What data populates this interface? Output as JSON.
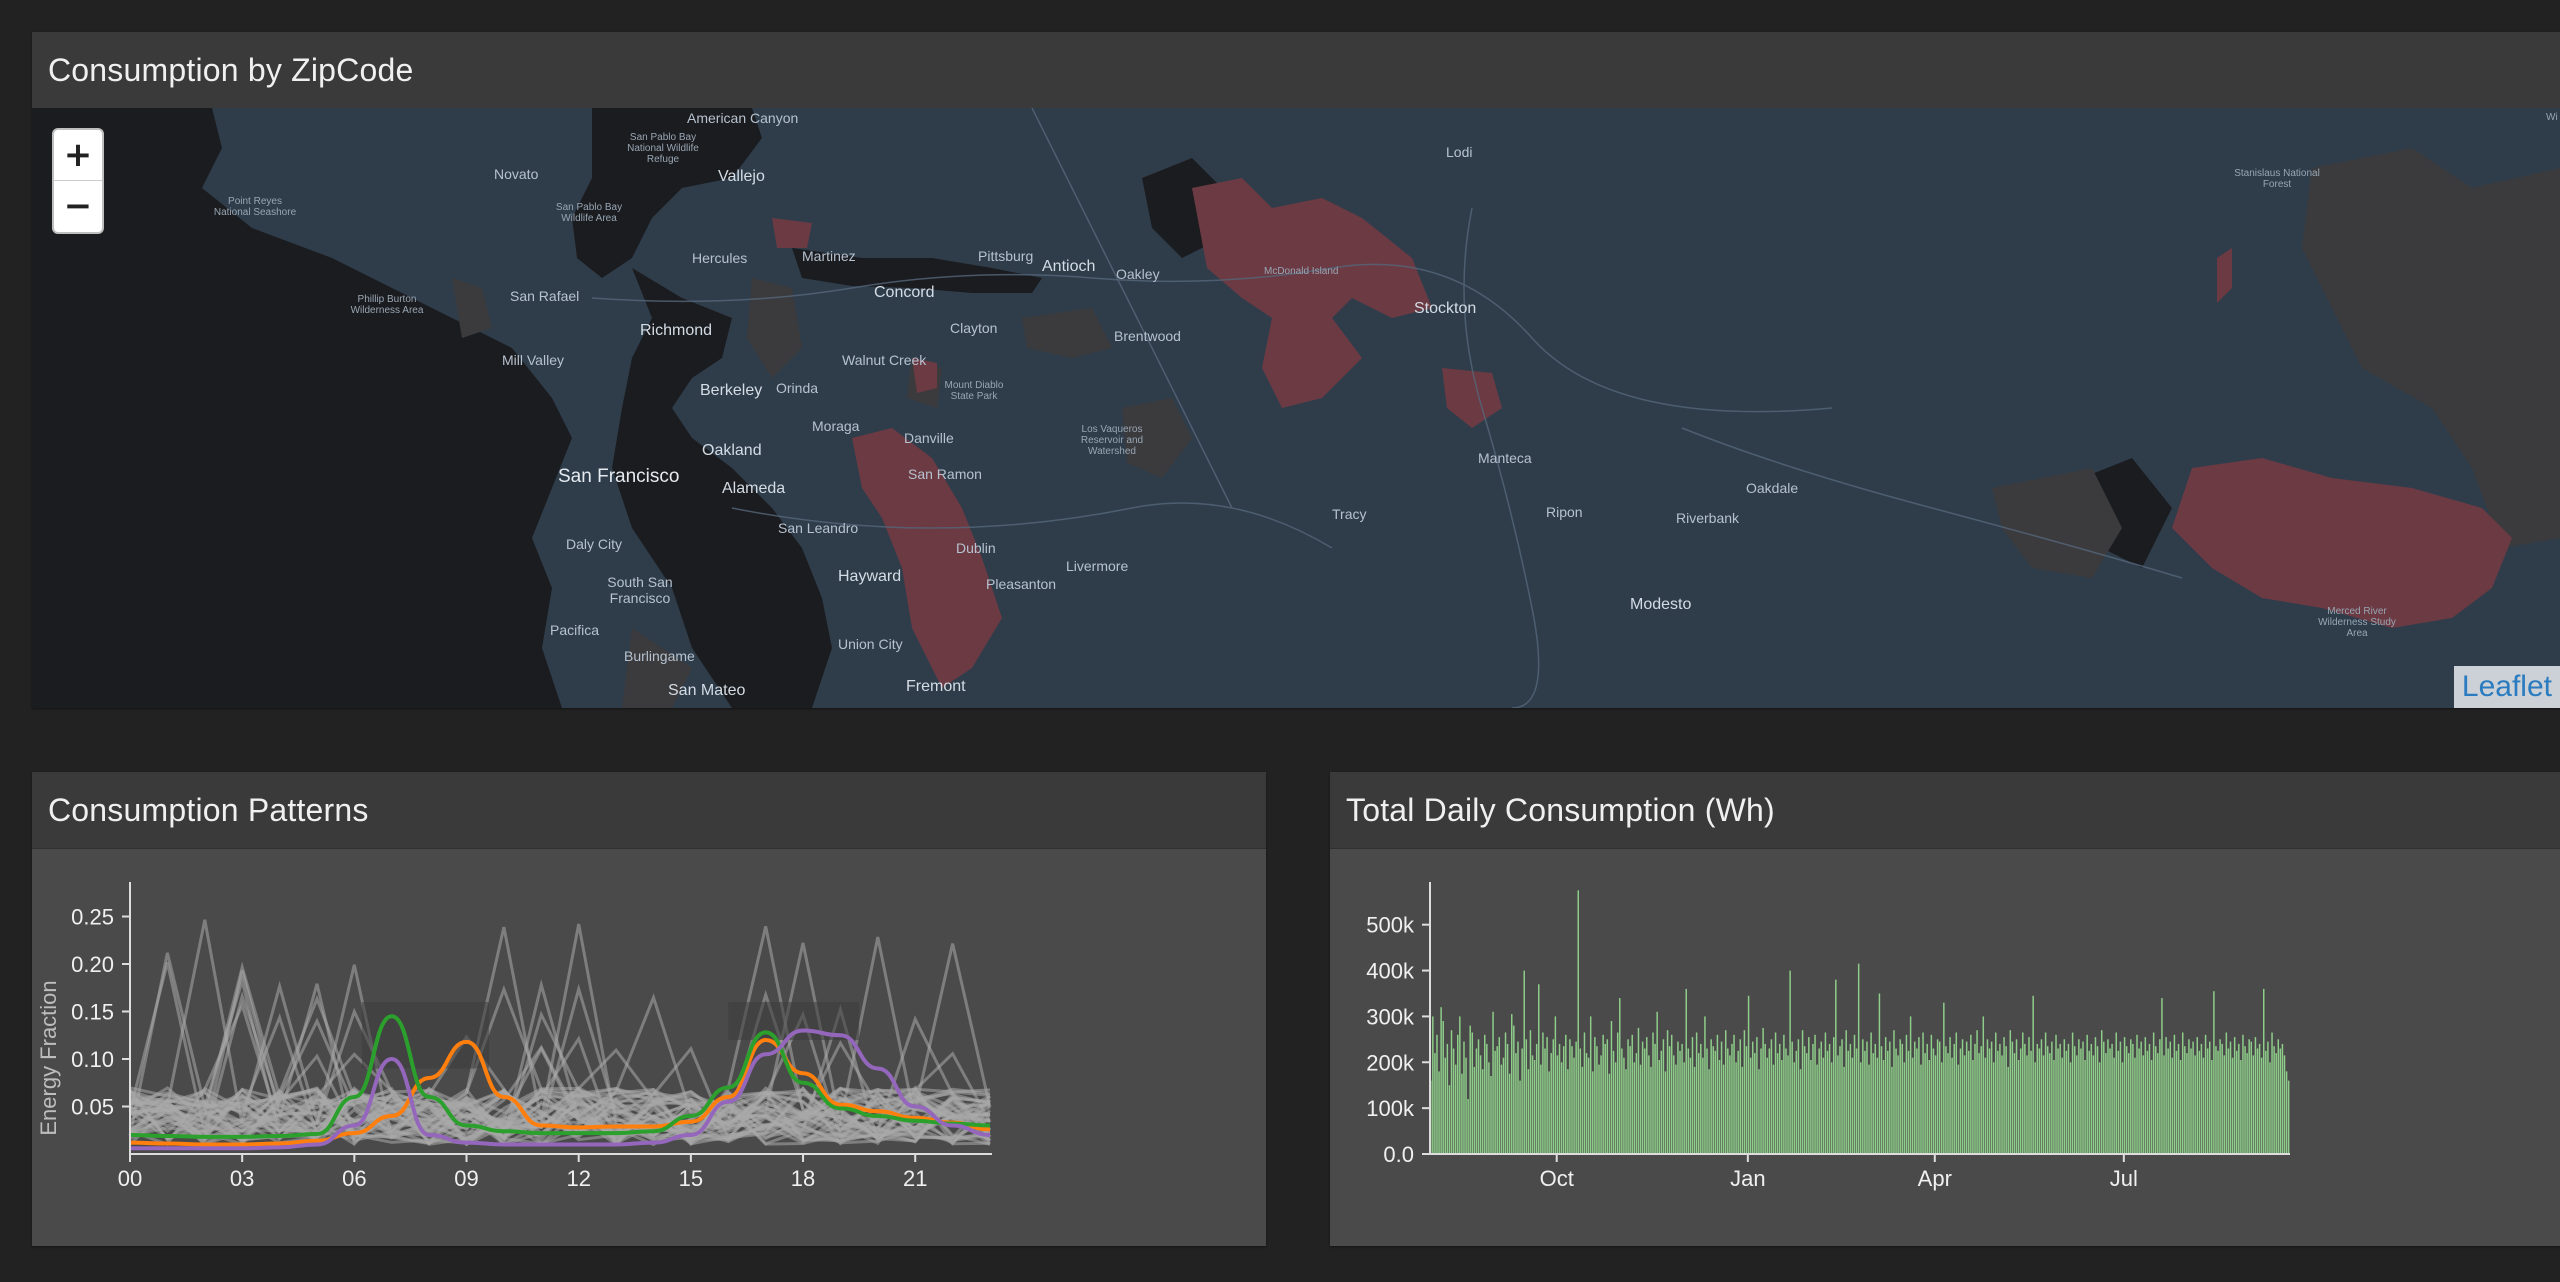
{
  "map_panel": {
    "title": "Consumption by ZipCode",
    "zoom_in": "+",
    "zoom_out": "−",
    "attribution": "Leaflet",
    "colors": {
      "water": "#1c1c1e",
      "land": "#2f3d4b",
      "zone_high": "#6b3a43",
      "zone_mid": "#3b3b3d"
    },
    "labels": [
      {
        "text": "American Canyon",
        "cls": ""
      },
      {
        "text": "San Pablo Bay National Wildlife Refuge",
        "cls": "small"
      },
      {
        "text": "Vallejo",
        "cls": "city"
      },
      {
        "text": "Novato",
        "cls": ""
      },
      {
        "text": "Point Reyes National Seashore",
        "cls": "small"
      },
      {
        "text": "San Pablo Bay Wildlife Area",
        "cls": "small"
      },
      {
        "text": "Hercules",
        "cls": ""
      },
      {
        "text": "Martinez",
        "cls": ""
      },
      {
        "text": "Pittsburg",
        "cls": ""
      },
      {
        "text": "Antioch",
        "cls": "city"
      },
      {
        "text": "Oakley",
        "cls": ""
      },
      {
        "text": "Lodi",
        "cls": ""
      },
      {
        "text": "McDonald Island",
        "cls": "small"
      },
      {
        "text": "Stockton",
        "cls": "city"
      },
      {
        "text": "Stanislaus National Forest",
        "cls": "small"
      },
      {
        "text": "Phillip Burton Wilderness Area",
        "cls": "small"
      },
      {
        "text": "San Rafael",
        "cls": ""
      },
      {
        "text": "Richmond",
        "cls": "city"
      },
      {
        "text": "Concord",
        "cls": "city"
      },
      {
        "text": "Clayton",
        "cls": ""
      },
      {
        "text": "Brentwood",
        "cls": ""
      },
      {
        "text": "Mill Valley",
        "cls": ""
      },
      {
        "text": "Walnut Creek",
        "cls": ""
      },
      {
        "text": "Berkeley",
        "cls": "city"
      },
      {
        "text": "Orinda",
        "cls": ""
      },
      {
        "text": "Mount Diablo State Park",
        "cls": "small"
      },
      {
        "text": "Moraga",
        "cls": ""
      },
      {
        "text": "Danville",
        "cls": ""
      },
      {
        "text": "Los Vaqueros Reservoir and Watershed",
        "cls": "small"
      },
      {
        "text": "Oakland",
        "cls": "city"
      },
      {
        "text": "San Francisco",
        "cls": "big"
      },
      {
        "text": "Alameda",
        "cls": "city"
      },
      {
        "text": "San Ramon",
        "cls": ""
      },
      {
        "text": "Manteca",
        "cls": ""
      },
      {
        "text": "Oakdale",
        "cls": ""
      },
      {
        "text": "Tracy",
        "cls": ""
      },
      {
        "text": "Ripon",
        "cls": ""
      },
      {
        "text": "Riverbank",
        "cls": ""
      },
      {
        "text": "San Leandro",
        "cls": ""
      },
      {
        "text": "Daly City",
        "cls": ""
      },
      {
        "text": "Dublin",
        "cls": ""
      },
      {
        "text": "Livermore",
        "cls": ""
      },
      {
        "text": "Hayward",
        "cls": "city"
      },
      {
        "text": "Pleasanton",
        "cls": ""
      },
      {
        "text": "South San Francisco",
        "cls": ""
      },
      {
        "text": "Modesto",
        "cls": "city"
      },
      {
        "text": "Merced River Wilderness Study Area",
        "cls": "small"
      },
      {
        "text": "Pacifica",
        "cls": ""
      },
      {
        "text": "Union City",
        "cls": ""
      },
      {
        "text": "Burlingame",
        "cls": ""
      },
      {
        "text": "San Mateo",
        "cls": "city"
      },
      {
        "text": "Fremont",
        "cls": "city"
      },
      {
        "text": "Wi",
        "cls": "small"
      }
    ]
  },
  "patterns_panel": {
    "title": "Consumption Patterns",
    "ylabel": "Energy Fraction"
  },
  "daily_panel": {
    "title": "Total Daily Consumption (Wh)"
  },
  "chart_data": [
    {
      "type": "line",
      "title": "Consumption Patterns",
      "xlabel": "",
      "ylabel": "Energy Fraction",
      "xlim": [
        0,
        23
      ],
      "ylim": [
        0,
        0.28
      ],
      "x_ticks": [
        "00",
        "03",
        "06",
        "09",
        "12",
        "15",
        "18",
        "21"
      ],
      "y_ticks": [
        "0.05",
        "0.10",
        "0.15",
        "0.20",
        "0.25"
      ],
      "x": [
        0,
        1,
        2,
        3,
        4,
        5,
        6,
        7,
        8,
        9,
        10,
        11,
        12,
        13,
        14,
        15,
        16,
        17,
        18,
        19,
        20,
        21,
        22,
        23
      ],
      "series": [
        {
          "color": "#ff7f0e",
          "values": [
            0.012,
            0.011,
            0.01,
            0.01,
            0.011,
            0.014,
            0.022,
            0.04,
            0.08,
            0.118,
            0.06,
            0.03,
            0.028,
            0.029,
            0.029,
            0.034,
            0.06,
            0.12,
            0.085,
            0.052,
            0.045,
            0.038,
            0.033,
            0.026
          ]
        },
        {
          "color": "#2ca02c",
          "values": [
            0.02,
            0.019,
            0.018,
            0.018,
            0.019,
            0.021,
            0.06,
            0.145,
            0.06,
            0.03,
            0.024,
            0.022,
            0.022,
            0.022,
            0.024,
            0.04,
            0.07,
            0.128,
            0.075,
            0.048,
            0.04,
            0.035,
            0.032,
            0.03
          ]
        },
        {
          "color": "#9467bd",
          "values": [
            0.006,
            0.006,
            0.006,
            0.006,
            0.007,
            0.01,
            0.03,
            0.1,
            0.02,
            0.012,
            0.01,
            0.01,
            0.01,
            0.01,
            0.012,
            0.02,
            0.055,
            0.105,
            0.13,
            0.125,
            0.09,
            0.05,
            0.03,
            0.02
          ]
        }
      ],
      "background_traces": {
        "color": "#aaaaaa",
        "note_count": 40
      },
      "grid": false
    },
    {
      "type": "bar",
      "title": "Total Daily Consumption (Wh)",
      "xlabel": "",
      "ylabel": "",
      "ylim": [
        0,
        580000
      ],
      "y_ticks": [
        "0.0",
        "100k",
        "200k",
        "300k",
        "400k",
        "500k"
      ],
      "x_ticks": [
        "Oct",
        "Jan",
        "Apr",
        "Jul"
      ],
      "x_range": [
        "2013-08-01",
        "2014-07-31"
      ],
      "color": "#8fce8a",
      "values": [
        160000,
        300000,
        220000,
        260000,
        180000,
        320000,
        290000,
        210000,
        240000,
        150000,
        270000,
        230000,
        195000,
        260000,
        300000,
        175000,
        245000,
        210000,
        120000,
        280000,
        265000,
        190000,
        230000,
        250000,
        215000,
        185000,
        260000,
        240000,
        200000,
        170000,
        310000,
        225000,
        235000,
        255000,
        195000,
        210000,
        265000,
        240000,
        175000,
        305000,
        280000,
        220000,
        245000,
        160000,
        230000,
        400000,
        250000,
        185000,
        270000,
        215000,
        205000,
        240000,
        370000,
        195000,
        265000,
        230000,
        255000,
        180000,
        220000,
        250000,
        300000,
        215000,
        240000,
        200000,
        235000,
        260000,
        185000,
        250000,
        235000,
        210000,
        245000,
        575000,
        230000,
        190000,
        265000,
        220000,
        210000,
        300000,
        180000,
        255000,
        235000,
        195000,
        215000,
        260000,
        240000,
        250000,
        175000,
        290000,
        225000,
        200000,
        265000,
        340000,
        230000,
        210000,
        185000,
        250000,
        235000,
        260000,
        200000,
        220000,
        275000,
        195000,
        245000,
        230000,
        255000,
        215000,
        190000,
        265000,
        240000,
        310000,
        205000,
        225000,
        250000,
        180000,
        270000,
        235000,
        260000,
        215000,
        195000,
        245000,
        225000,
        240000,
        200000,
        360000,
        230000,
        210000,
        255000,
        190000,
        265000,
        220000,
        240000,
        210000,
        300000,
        230000,
        185000,
        250000,
        235000,
        225000,
        260000,
        205000,
        245000,
        195000,
        270000,
        230000,
        215000,
        240000,
        260000,
        200000,
        225000,
        250000,
        190000,
        270000,
        235000,
        345000,
        210000,
        245000,
        220000,
        255000,
        185000,
        230000,
        275000,
        240000,
        210000,
        230000,
        250000,
        195000,
        265000,
        220000,
        240000,
        205000,
        260000,
        230000,
        215000,
        400000,
        245000,
        200000,
        225000,
        250000,
        185000,
        270000,
        235000,
        220000,
        255000,
        205000,
        240000,
        260000,
        195000,
        230000,
        245000,
        210000,
        265000,
        225000,
        240000,
        200000,
        255000,
        380000,
        215000,
        235000,
        250000,
        190000,
        270000,
        225000,
        240000,
        210000,
        260000,
        230000,
        415000,
        200000,
        250000,
        225000,
        245000,
        195000,
        265000,
        220000,
        240000,
        210000,
        350000,
        235000,
        205000,
        255000,
        225000,
        245000,
        190000,
        270000,
        230000,
        215000,
        250000,
        240000,
        200000,
        260000,
        225000,
        300000,
        210000,
        245000,
        230000,
        255000,
        195000,
        265000,
        220000,
        240000,
        205000,
        260000,
        230000,
        215000,
        250000,
        245000,
        200000,
        330000,
        235000,
        220000,
        255000,
        210000,
        240000,
        265000,
        195000,
        230000,
        250000,
        215000,
        245000,
        225000,
        260000,
        205000,
        240000,
        270000,
        220000,
        235000,
        300000,
        210000,
        250000,
        230000,
        245000,
        200000,
        265000,
        225000,
        240000,
        215000,
        255000,
        235000,
        190000,
        270000,
        245000,
        220000,
        250000,
        205000,
        230000,
        265000,
        240000,
        215000,
        255000,
        225000,
        345000,
        200000,
        240000,
        230000,
        250000,
        215000,
        265000,
        235000,
        220000,
        245000,
        205000,
        260000,
        230000,
        240000,
        210000,
        250000,
        225000,
        240000,
        200000,
        265000,
        235000,
        215000,
        250000,
        230000,
        245000,
        205000,
        260000,
        225000,
        240000,
        215000,
        255000,
        235000,
        200000,
        270000,
        245000,
        220000,
        250000,
        230000,
        240000,
        210000,
        265000,
        225000,
        245000,
        200000,
        255000,
        235000,
        220000,
        250000,
        240000,
        210000,
        260000,
        230000,
        245000,
        215000,
        255000,
        225000,
        240000,
        205000,
        265000,
        235000,
        220000,
        250000,
        340000,
        215000,
        255000,
        230000,
        245000,
        210000,
        260000,
        225000,
        240000,
        205000,
        265000,
        235000,
        220000,
        250000,
        230000,
        245000,
        215000,
        255000,
        225000,
        240000,
        210000,
        260000,
        230000,
        245000,
        205000,
        355000,
        235000,
        225000,
        250000,
        240000,
        215000,
        265000,
        230000,
        245000,
        210000,
        255000,
        225000,
        240000,
        205000,
        260000,
        235000,
        220000,
        250000,
        245000,
        215000,
        255000,
        230000,
        240000,
        210000,
        360000,
        225000,
        245000,
        200000,
        265000,
        235000,
        220000,
        250000,
        230000,
        240000,
        215000,
        180000,
        160000
      ]
    }
  ]
}
